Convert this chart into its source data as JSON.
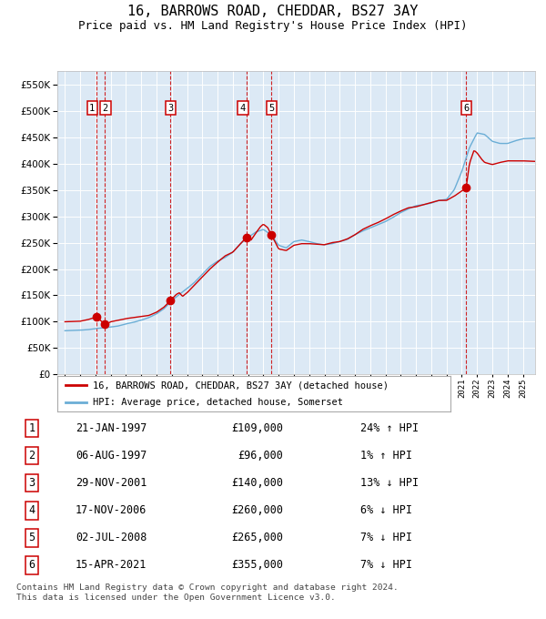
{
  "title": "16, BARROWS ROAD, CHEDDAR, BS27 3AY",
  "subtitle": "Price paid vs. HM Land Registry's House Price Index (HPI)",
  "title_fontsize": 11,
  "subtitle_fontsize": 9,
  "sale_dates_num": [
    1997.06,
    1997.59,
    2001.91,
    2006.89,
    2008.5,
    2021.29
  ],
  "sale_prices": [
    109000,
    96000,
    140000,
    260000,
    265000,
    355000
  ],
  "sale_labels": [
    "1",
    "2",
    "3",
    "4",
    "5",
    "6"
  ],
  "hpi_color": "#6baed6",
  "sale_color": "#cc0000",
  "vline_color": "#cc0000",
  "plot_bg_color": "#dce9f5",
  "grid_color": "#ffffff",
  "ylim": [
    0,
    575000
  ],
  "yticks": [
    0,
    50000,
    100000,
    150000,
    200000,
    250000,
    300000,
    350000,
    400000,
    450000,
    500000,
    550000
  ],
  "xlim_start": 1994.5,
  "xlim_end": 2025.8,
  "legend_sale_label": "16, BARROWS ROAD, CHEDDAR, BS27 3AY (detached house)",
  "legend_hpi_label": "HPI: Average price, detached house, Somerset",
  "table_rows": [
    [
      "1",
      "21-JAN-1997",
      "£109,000",
      "24% ↑ HPI"
    ],
    [
      "2",
      "06-AUG-1997",
      "£96,000",
      "1% ↑ HPI"
    ],
    [
      "3",
      "29-NOV-2001",
      "£140,000",
      "13% ↓ HPI"
    ],
    [
      "4",
      "17-NOV-2006",
      "£260,000",
      "6% ↓ HPI"
    ],
    [
      "5",
      "02-JUL-2008",
      "£265,000",
      "7% ↓ HPI"
    ],
    [
      "6",
      "15-APR-2021",
      "£355,000",
      "7% ↓ HPI"
    ]
  ],
  "footnote": "Contains HM Land Registry data © Crown copyright and database right 2024.\nThis data is licensed under the Open Government Licence v3.0.",
  "hpi_anchors": [
    [
      1995.0,
      83000
    ],
    [
      1995.5,
      83500
    ],
    [
      1996.0,
      84000
    ],
    [
      1996.5,
      85000
    ],
    [
      1997.0,
      87000
    ],
    [
      1997.5,
      88500
    ],
    [
      1998.0,
      90000
    ],
    [
      1998.5,
      92000
    ],
    [
      1999.0,
      96000
    ],
    [
      1999.5,
      99000
    ],
    [
      2000.0,
      103000
    ],
    [
      2000.5,
      108000
    ],
    [
      2001.0,
      115000
    ],
    [
      2001.5,
      125000
    ],
    [
      2002.0,
      140000
    ],
    [
      2002.5,
      152000
    ],
    [
      2003.0,
      163000
    ],
    [
      2003.5,
      175000
    ],
    [
      2004.0,
      190000
    ],
    [
      2004.5,
      205000
    ],
    [
      2005.0,
      215000
    ],
    [
      2005.5,
      222000
    ],
    [
      2006.0,
      232000
    ],
    [
      2006.5,
      248000
    ],
    [
      2007.0,
      260000
    ],
    [
      2007.5,
      270000
    ],
    [
      2008.0,
      275000
    ],
    [
      2008.5,
      265000
    ],
    [
      2009.0,
      245000
    ],
    [
      2009.5,
      240000
    ],
    [
      2010.0,
      252000
    ],
    [
      2010.5,
      255000
    ],
    [
      2011.0,
      252000
    ],
    [
      2011.5,
      248000
    ],
    [
      2012.0,
      246000
    ],
    [
      2012.5,
      248000
    ],
    [
      2013.0,
      252000
    ],
    [
      2013.5,
      256000
    ],
    [
      2014.0,
      265000
    ],
    [
      2014.5,
      272000
    ],
    [
      2015.0,
      278000
    ],
    [
      2015.5,
      284000
    ],
    [
      2016.0,
      290000
    ],
    [
      2016.5,
      298000
    ],
    [
      2017.0,
      307000
    ],
    [
      2017.5,
      314000
    ],
    [
      2018.0,
      320000
    ],
    [
      2018.5,
      322000
    ],
    [
      2019.0,
      325000
    ],
    [
      2019.5,
      330000
    ],
    [
      2020.0,
      332000
    ],
    [
      2020.5,
      350000
    ],
    [
      2021.0,
      385000
    ],
    [
      2021.5,
      430000
    ],
    [
      2022.0,
      458000
    ],
    [
      2022.5,
      455000
    ],
    [
      2023.0,
      442000
    ],
    [
      2023.5,
      438000
    ],
    [
      2024.0,
      438000
    ],
    [
      2024.5,
      443000
    ],
    [
      2025.0,
      447000
    ],
    [
      2025.8,
      448000
    ]
  ],
  "sale_anchors": [
    [
      1995.0,
      100000
    ],
    [
      1995.5,
      100500
    ],
    [
      1996.0,
      101000
    ],
    [
      1996.5,
      104000
    ],
    [
      1997.06,
      109000
    ],
    [
      1997.59,
      96000
    ],
    [
      1997.8,
      97000
    ],
    [
      1998.0,
      100000
    ],
    [
      1998.5,
      103000
    ],
    [
      1999.0,
      106000
    ],
    [
      1999.5,
      108000
    ],
    [
      2000.0,
      110000
    ],
    [
      2000.5,
      112000
    ],
    [
      2001.0,
      118000
    ],
    [
      2001.5,
      128000
    ],
    [
      2001.91,
      140000
    ],
    [
      2002.0,
      143000
    ],
    [
      2002.3,
      152000
    ],
    [
      2002.5,
      155000
    ],
    [
      2002.7,
      148000
    ],
    [
      2003.0,
      155000
    ],
    [
      2003.5,
      170000
    ],
    [
      2004.0,
      185000
    ],
    [
      2004.5,
      200000
    ],
    [
      2005.0,
      213000
    ],
    [
      2005.5,
      225000
    ],
    [
      2006.0,
      232000
    ],
    [
      2006.5,
      248000
    ],
    [
      2006.89,
      260000
    ],
    [
      2007.0,
      260000
    ],
    [
      2007.2,
      255000
    ],
    [
      2007.5,
      268000
    ],
    [
      2007.8,
      280000
    ],
    [
      2008.0,
      285000
    ],
    [
      2008.3,
      278000
    ],
    [
      2008.5,
      265000
    ],
    [
      2008.7,
      255000
    ],
    [
      2009.0,
      238000
    ],
    [
      2009.5,
      235000
    ],
    [
      2010.0,
      245000
    ],
    [
      2010.5,
      248000
    ],
    [
      2011.0,
      248000
    ],
    [
      2011.5,
      247000
    ],
    [
      2012.0,
      246000
    ],
    [
      2012.5,
      250000
    ],
    [
      2013.0,
      252000
    ],
    [
      2013.5,
      257000
    ],
    [
      2014.0,
      265000
    ],
    [
      2014.5,
      275000
    ],
    [
      2015.0,
      282000
    ],
    [
      2015.5,
      288000
    ],
    [
      2016.0,
      295000
    ],
    [
      2016.5,
      303000
    ],
    [
      2017.0,
      310000
    ],
    [
      2017.5,
      316000
    ],
    [
      2018.0,
      318000
    ],
    [
      2018.5,
      322000
    ],
    [
      2019.0,
      326000
    ],
    [
      2019.5,
      330000
    ],
    [
      2020.0,
      330000
    ],
    [
      2020.5,
      338000
    ],
    [
      2021.0,
      348000
    ],
    [
      2021.29,
      355000
    ],
    [
      2021.5,
      400000
    ],
    [
      2021.8,
      425000
    ],
    [
      2022.0,
      420000
    ],
    [
      2022.3,
      408000
    ],
    [
      2022.5,
      402000
    ],
    [
      2023.0,
      398000
    ],
    [
      2023.5,
      402000
    ],
    [
      2024.0,
      405000
    ],
    [
      2024.5,
      405000
    ],
    [
      2025.0,
      405000
    ],
    [
      2025.8,
      404000
    ]
  ]
}
